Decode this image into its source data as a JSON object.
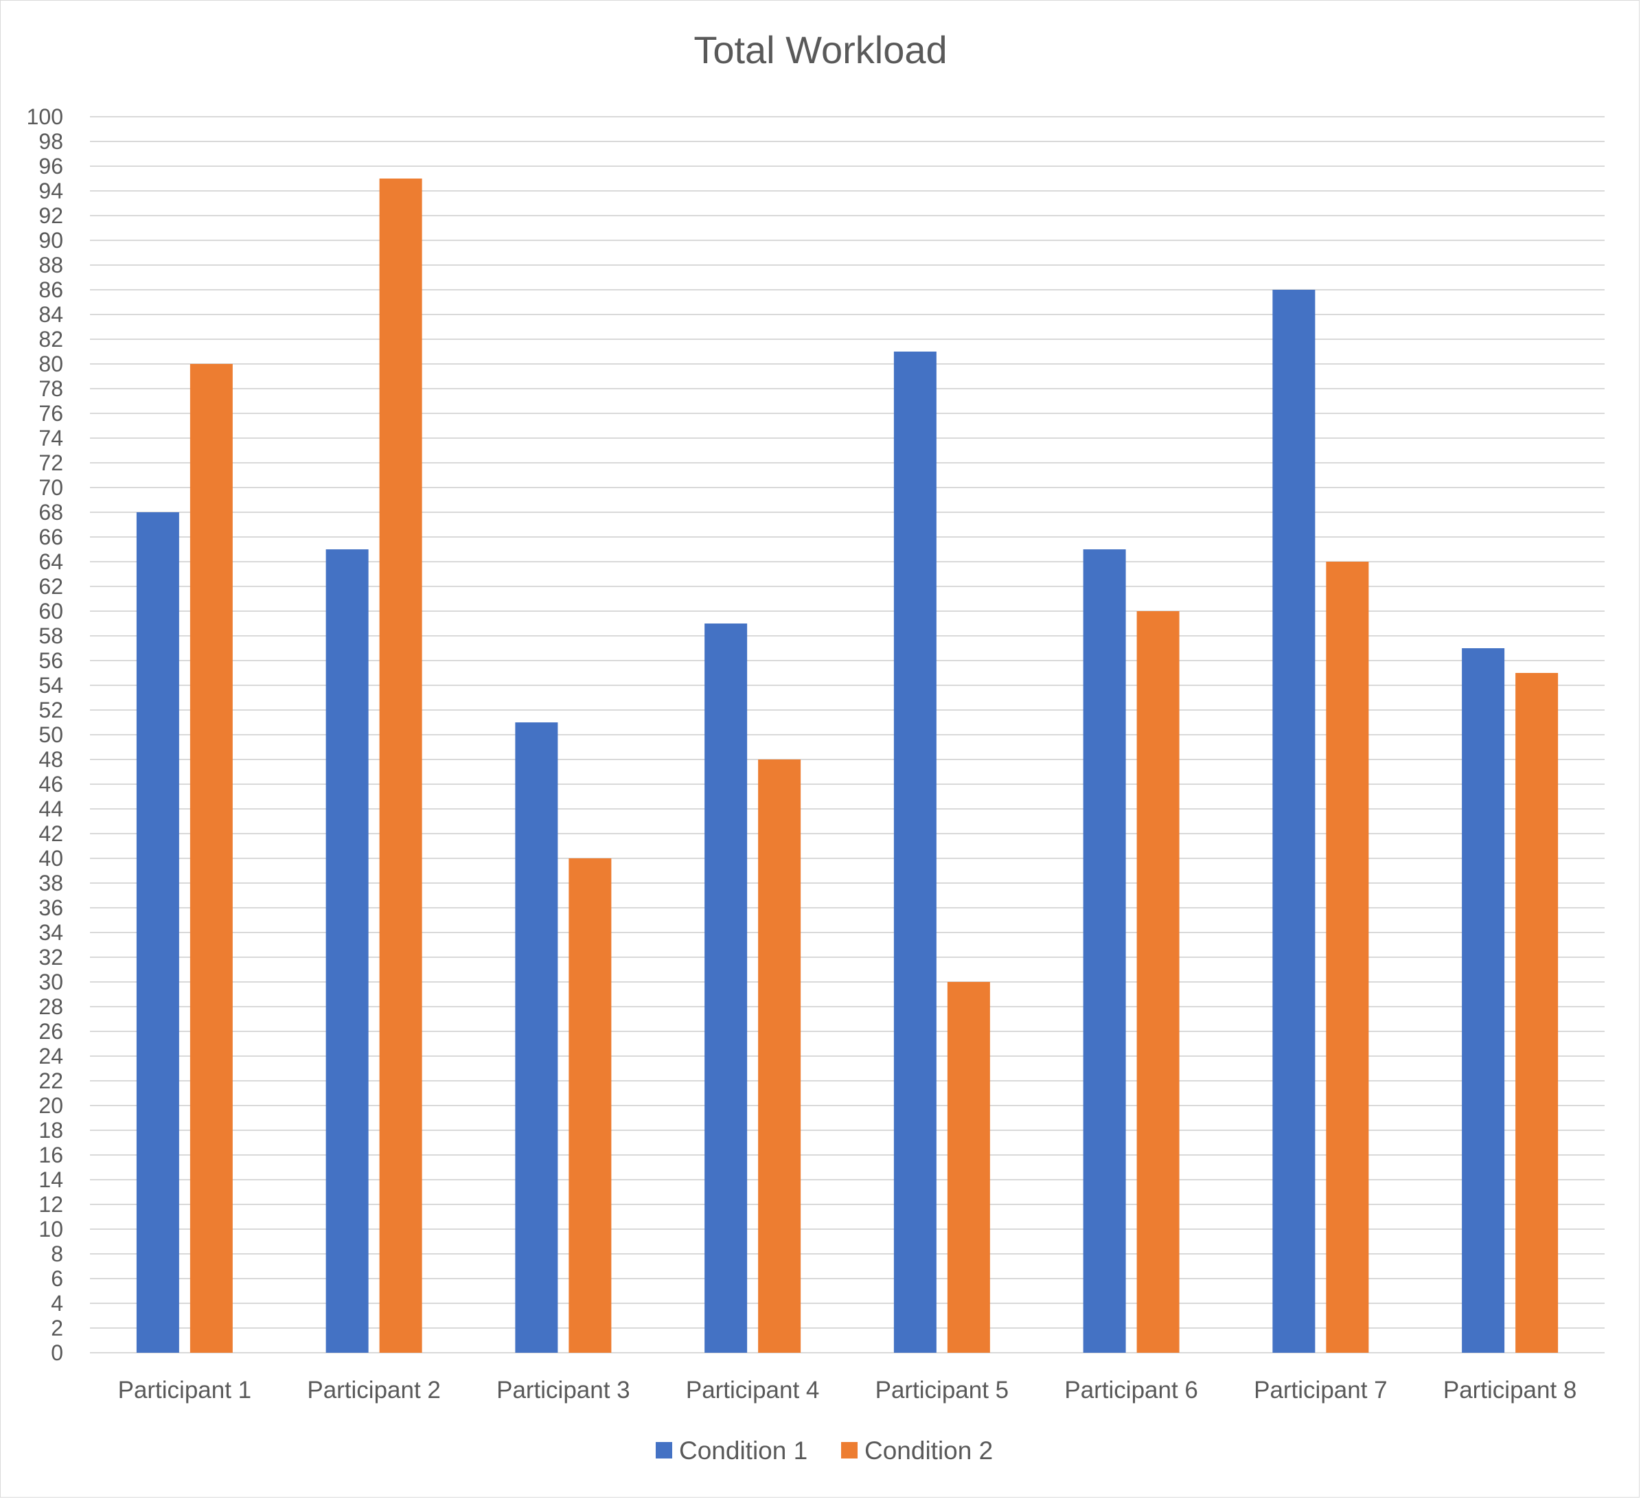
{
  "chart_data": {
    "type": "bar",
    "title": "Total Workload",
    "xlabel": "",
    "ylabel": "",
    "ylim": [
      0,
      100
    ],
    "ytick_step": 2,
    "grid": true,
    "legend_position": "bottom",
    "categories": [
      "Participant 1",
      "Participant 2",
      "Participant 3",
      "Participant 4",
      "Participant 5",
      "Participant 6",
      "Participant 7",
      "Participant 8"
    ],
    "series": [
      {
        "name": "Condition 1",
        "color": "#4472C4",
        "values": [
          68,
          65,
          51,
          59,
          81,
          65,
          86,
          57
        ]
      },
      {
        "name": "Condition 2",
        "color": "#ED7D31",
        "values": [
          80,
          95,
          40,
          48,
          30,
          60,
          64,
          55
        ]
      }
    ]
  }
}
